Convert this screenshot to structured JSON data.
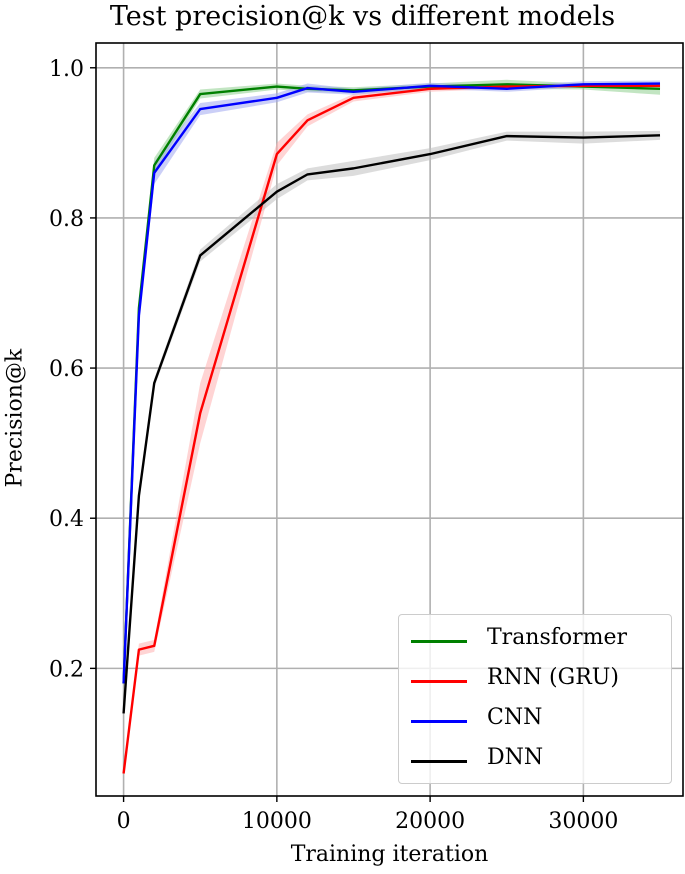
{
  "chart_data": {
    "type": "line",
    "title": "Test precision@k vs different models",
    "xlabel": "Training iteration",
    "ylabel": "Precision@k",
    "x": [
      0,
      1000,
      2000,
      5000,
      10000,
      12000,
      15000,
      20000,
      25000,
      30000,
      35000
    ],
    "xticks": [
      0,
      10000,
      20000,
      30000
    ],
    "yticks": [
      0.2,
      0.4,
      0.6,
      0.8,
      1.0
    ],
    "xtick_labels": [
      "0",
      "10000",
      "20000",
      "30000"
    ],
    "ytick_labels": [
      "0.2",
      "0.4",
      "0.6",
      "0.8",
      "1.0"
    ],
    "xlim": [
      -1800,
      36500
    ],
    "ylim": [
      0.03,
      1.033
    ],
    "grid": true,
    "legend_position": "lower right",
    "series": [
      {
        "name": "Transformer",
        "color": "#008000",
        "band_color": "#90d090",
        "values": [
          0.18,
          0.68,
          0.87,
          0.965,
          0.975,
          0.972,
          0.97,
          0.975,
          0.978,
          0.975,
          0.972
        ],
        "band": [
          0.005,
          0.008,
          0.01,
          0.006,
          0.004,
          0.004,
          0.004,
          0.004,
          0.006,
          0.004,
          0.008
        ]
      },
      {
        "name": "RNN (GRU)",
        "color": "#ff0000",
        "band_color": "#ffb0b0",
        "values": [
          0.06,
          0.225,
          0.23,
          0.54,
          0.885,
          0.93,
          0.96,
          0.972,
          0.975,
          0.976,
          0.976
        ],
        "band": [
          0.003,
          0.008,
          0.008,
          0.04,
          0.015,
          0.008,
          0.005,
          0.004,
          0.003,
          0.003,
          0.003
        ]
      },
      {
        "name": "CNN",
        "color": "#0000ff",
        "band_color": "#a0a8f0",
        "values": [
          0.18,
          0.67,
          0.86,
          0.945,
          0.96,
          0.973,
          0.968,
          0.976,
          0.972,
          0.978,
          0.979
        ],
        "band": [
          0.005,
          0.01,
          0.015,
          0.008,
          0.006,
          0.006,
          0.004,
          0.004,
          0.004,
          0.004,
          0.004
        ]
      },
      {
        "name": "DNN",
        "color": "#000000",
        "band_color": "#c0c0c0",
        "values": [
          0.14,
          0.43,
          0.58,
          0.75,
          0.835,
          0.858,
          0.866,
          0.885,
          0.909,
          0.907,
          0.91
        ],
        "band": [
          0.003,
          0.006,
          0.006,
          0.008,
          0.01,
          0.008,
          0.01,
          0.008,
          0.006,
          0.008,
          0.006
        ]
      }
    ]
  },
  "legend": {
    "items": [
      {
        "label": "Transformer",
        "color": "#008000"
      },
      {
        "label": "RNN (GRU)",
        "color": "#ff0000"
      },
      {
        "label": "CNN",
        "color": "#0000ff"
      },
      {
        "label": "DNN",
        "color": "#000000"
      }
    ]
  }
}
